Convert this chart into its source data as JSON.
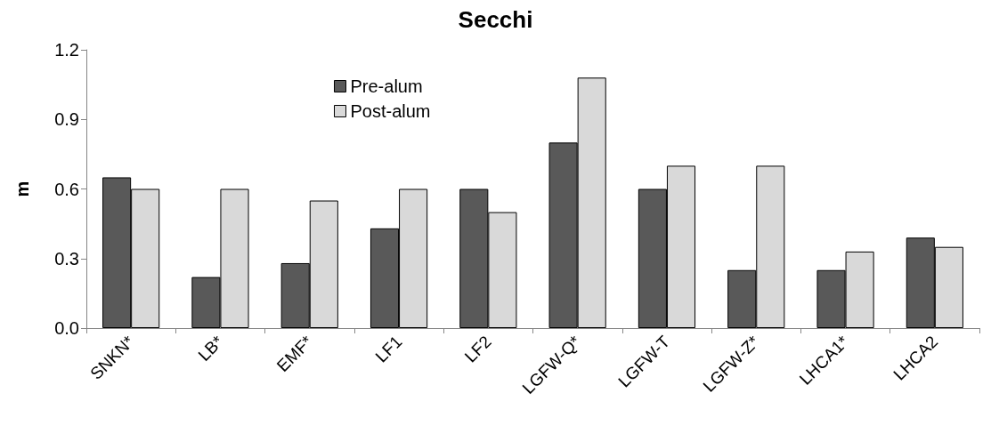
{
  "chart_data": {
    "type": "bar",
    "title": "Secchi",
    "ylabel": "m",
    "categories": [
      "SNKN*",
      "LB*",
      "EMF*",
      "LF1",
      "LF2",
      "LGFW-Q*",
      "LGFW-T",
      "LGFW-Z*",
      "LHCA1*",
      "LHCA2"
    ],
    "series": [
      {
        "name": "Pre-alum",
        "color": "#595959",
        "values": [
          0.65,
          0.22,
          0.28,
          0.43,
          0.6,
          0.8,
          0.6,
          0.25,
          0.25,
          0.39
        ]
      },
      {
        "name": "Post-alum",
        "color": "#d9d9d9",
        "values": [
          0.6,
          0.6,
          0.55,
          0.6,
          0.5,
          1.08,
          0.7,
          0.7,
          0.33,
          0.35
        ]
      }
    ],
    "ylim": [
      0,
      1.2
    ],
    "yticks": [
      {
        "value": 0,
        "label": "0.0"
      },
      {
        "value": 0.3,
        "label": "0.3"
      },
      {
        "value": 0.6,
        "label": "0.6"
      },
      {
        "value": 0.9,
        "label": "0.9"
      },
      {
        "value": 1.2,
        "label": "1.2"
      }
    ],
    "grid": false,
    "legend": "top"
  }
}
